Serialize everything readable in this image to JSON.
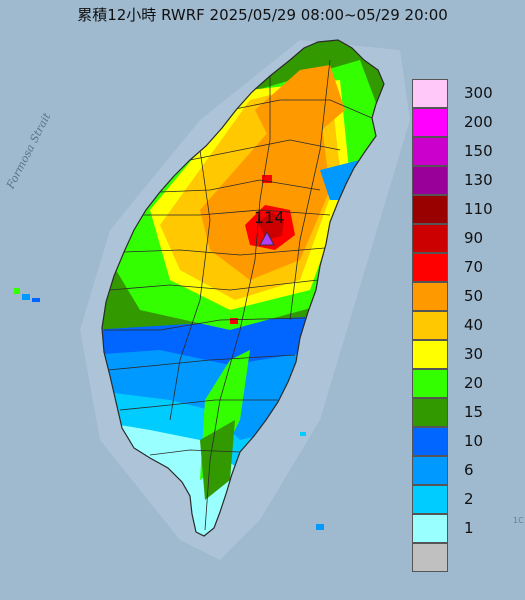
{
  "title": "累積12小時 RWRF 2025/05/29 08:00~05/29 20:00",
  "strait_label": "Formosa Strait",
  "max_value_label": "114",
  "edge_number": "1C",
  "colors": {
    "ocean": "#9fb9cf",
    "land_gray": "#bdbdbd",
    "boundary": "#2a2a2a",
    "max_marker": "#b040ff"
  },
  "legend": [
    {
      "label": "300",
      "color": "#ffc8f8"
    },
    {
      "label": "200",
      "color": "#ff00ff"
    },
    {
      "label": "150",
      "color": "#cc00cc"
    },
    {
      "label": "130",
      "color": "#990099"
    },
    {
      "label": "110",
      "color": "#990000"
    },
    {
      "label": "90",
      "color": "#cc0000"
    },
    {
      "label": "70",
      "color": "#ff0000"
    },
    {
      "label": "50",
      "color": "#ff9900"
    },
    {
      "label": "40",
      "color": "#ffc800"
    },
    {
      "label": "30",
      "color": "#ffff00"
    },
    {
      "label": "20",
      "color": "#33ff00"
    },
    {
      "label": "15",
      "color": "#339900"
    },
    {
      "label": "10",
      "color": "#0066ff"
    },
    {
      "label": "6",
      "color": "#0099ff"
    },
    {
      "label": "2",
      "color": "#00ccff"
    },
    {
      "label": "1",
      "color": "#99ffff"
    },
    {
      "label": "",
      "color": "#c0c0c0"
    }
  ]
}
